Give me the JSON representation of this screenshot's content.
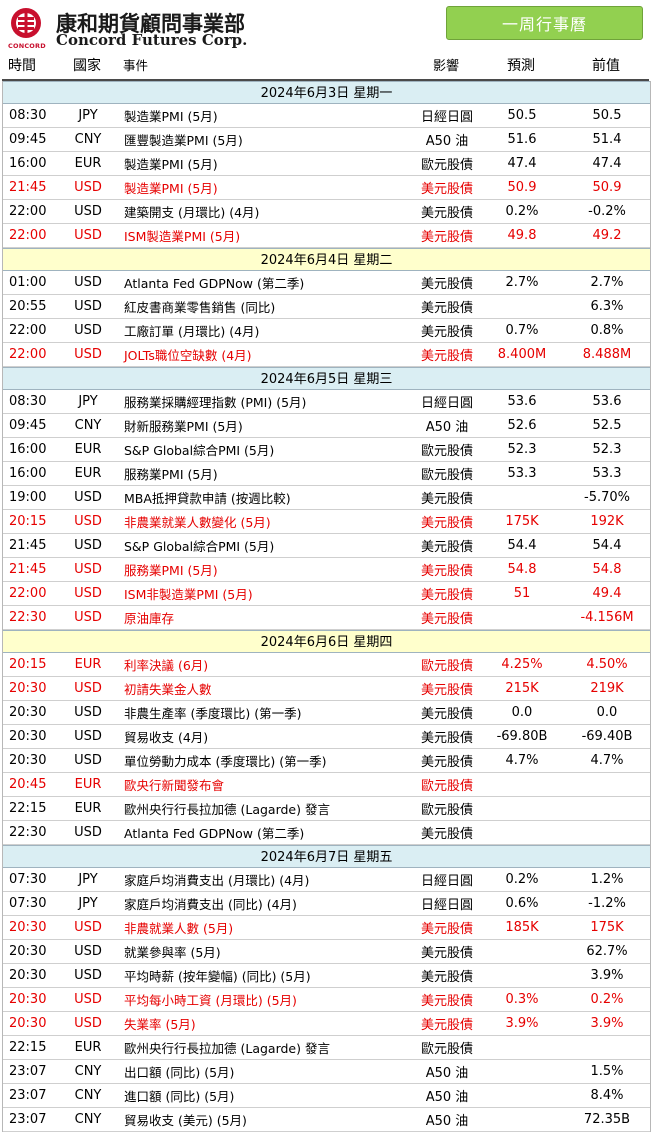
{
  "header": {
    "logo_cn": "康和期貨顧問事業部",
    "logo_en": "Concord Futures Corp.",
    "logo_small": "CONCORD",
    "week_button": "一周行事曆"
  },
  "columns": [
    "時間",
    "國家",
    "事件",
    "影響",
    "預測",
    "前值"
  ],
  "colors": {
    "highlight": "#e60000",
    "day_blue": "#daeef3",
    "day_yellow": "#ffffcc",
    "button": "#92d050"
  },
  "days": [
    {
      "label": "2024年6月3日  星期一",
      "style": "blue",
      "rows": [
        {
          "time": "08:30",
          "country": "JPY",
          "event": "製造業PMI (5月)",
          "impact": "日經日圓",
          "forecast": "50.5",
          "previous": "50.5",
          "hi": false
        },
        {
          "time": "09:45",
          "country": "CNY",
          "event": "匯豐製造業PMI (5月)",
          "impact": "A50 油",
          "forecast": "51.6",
          "previous": "51.4",
          "hi": false
        },
        {
          "time": "16:00",
          "country": "EUR",
          "event": "製造業PMI (5月)",
          "impact": "歐元股債",
          "forecast": "47.4",
          "previous": "47.4",
          "hi": false
        },
        {
          "time": "21:45",
          "country": "USD",
          "event": "製造業PMI (5月)",
          "impact": "美元股債",
          "forecast": "50.9",
          "previous": "50.9",
          "hi": true
        },
        {
          "time": "22:00",
          "country": "USD",
          "event": "建築開支 (月環比) (4月)",
          "impact": "美元股債",
          "forecast": "0.2%",
          "previous": "-0.2%",
          "hi": false
        },
        {
          "time": "22:00",
          "country": "USD",
          "event": "ISM製造業PMI (5月)",
          "impact": "美元股債",
          "forecast": "49.8",
          "previous": "49.2",
          "hi": true
        }
      ]
    },
    {
      "label": "2024年6月4日  星期二",
      "style": "yellow",
      "rows": [
        {
          "time": "01:00",
          "country": "USD",
          "event": "Atlanta Fed GDPNow (第二季)",
          "impact": "美元股債",
          "forecast": "2.7%",
          "previous": "2.7%",
          "hi": false
        },
        {
          "time": "20:55",
          "country": "USD",
          "event": "紅皮書商業零售銷售 (同比)",
          "impact": "美元股債",
          "forecast": "",
          "previous": "6.3%",
          "hi": false
        },
        {
          "time": "22:00",
          "country": "USD",
          "event": "工廠訂單 (月環比) (4月)",
          "impact": "美元股債",
          "forecast": "0.7%",
          "previous": "0.8%",
          "hi": false
        },
        {
          "time": "22:00",
          "country": "USD",
          "event": "JOLTs職位空缺數 (4月)",
          "impact": "美元股債",
          "forecast": "8.400M",
          "previous": "8.488M",
          "hi": true
        }
      ]
    },
    {
      "label": "2024年6月5日  星期三",
      "style": "blue",
      "rows": [
        {
          "time": "08:30",
          "country": "JPY",
          "event": "服務業採購經理指數 (PMI) (5月)",
          "impact": "日經日圓",
          "forecast": "53.6",
          "previous": "53.6",
          "hi": false
        },
        {
          "time": "09:45",
          "country": "CNY",
          "event": "財新服務業PMI (5月)",
          "impact": "A50 油",
          "forecast": "52.6",
          "previous": "52.5",
          "hi": false
        },
        {
          "time": "16:00",
          "country": "EUR",
          "event": "S&P Global綜合PMI (5月)",
          "impact": "歐元股債",
          "forecast": "52.3",
          "previous": "52.3",
          "hi": false
        },
        {
          "time": "16:00",
          "country": "EUR",
          "event": "服務業PMI (5月)",
          "impact": "歐元股債",
          "forecast": "53.3",
          "previous": "53.3",
          "hi": false
        },
        {
          "time": "19:00",
          "country": "USD",
          "event": "MBA抵押貸款申請 (按週比較)",
          "impact": "美元股債",
          "forecast": "",
          "previous": "-5.70%",
          "hi": false
        },
        {
          "time": "20:15",
          "country": "USD",
          "event": "非農業就業人數變化 (5月)",
          "impact": "美元股債",
          "forecast": "175K",
          "previous": "192K",
          "hi": true
        },
        {
          "time": "21:45",
          "country": "USD",
          "event": "S&P Global綜合PMI (5月)",
          "impact": "美元股債",
          "forecast": "54.4",
          "previous": "54.4",
          "hi": false
        },
        {
          "time": "21:45",
          "country": "USD",
          "event": "服務業PMI (5月)",
          "impact": "美元股債",
          "forecast": "54.8",
          "previous": "54.8",
          "hi": true
        },
        {
          "time": "22:00",
          "country": "USD",
          "event": "ISM非製造業PMI (5月)",
          "impact": "美元股債",
          "forecast": "51",
          "previous": "49.4",
          "hi": true
        },
        {
          "time": "22:30",
          "country": "USD",
          "event": "原油庫存",
          "impact": "美元股債",
          "forecast": "",
          "previous": "-4.156M",
          "hi": true
        }
      ]
    },
    {
      "label": "2024年6月6日  星期四",
      "style": "yellow",
      "rows": [
        {
          "time": "20:15",
          "country": "EUR",
          "event": "利率決議 (6月)",
          "impact": "歐元股債",
          "forecast": "4.25%",
          "previous": "4.50%",
          "hi": true
        },
        {
          "time": "20:30",
          "country": "USD",
          "event": "初請失業金人數",
          "impact": "美元股債",
          "forecast": "215K",
          "previous": "219K",
          "hi": true
        },
        {
          "time": "20:30",
          "country": "USD",
          "event": "非農生產率 (季度環比) (第一季)",
          "impact": "美元股債",
          "forecast": "0.0",
          "previous": "0.0",
          "hi": false
        },
        {
          "time": "20:30",
          "country": "USD",
          "event": "貿易收支 (4月)",
          "impact": "美元股債",
          "forecast": "-69.80B",
          "previous": "-69.40B",
          "hi": false
        },
        {
          "time": "20:30",
          "country": "USD",
          "event": "單位勞動力成本 (季度環比) (第一季)",
          "impact": "美元股債",
          "forecast": "4.7%",
          "previous": "4.7%",
          "hi": false
        },
        {
          "time": "20:45",
          "country": "EUR",
          "event": "歐央行新聞發布會",
          "impact": "歐元股債",
          "forecast": "",
          "previous": "",
          "hi": true
        },
        {
          "time": "22:15",
          "country": "EUR",
          "event": "歐州央行行長拉加德 (Lagarde) 發言",
          "impact": "歐元股債",
          "forecast": "",
          "previous": "",
          "hi": false
        },
        {
          "time": "22:30",
          "country": "USD",
          "event": "Atlanta Fed GDPNow (第二季)",
          "impact": "美元股債",
          "forecast": "",
          "previous": "",
          "hi": false
        }
      ]
    },
    {
      "label": "2024年6月7日  星期五",
      "style": "blue",
      "rows": [
        {
          "time": "07:30",
          "country": "JPY",
          "event": "家庭戶均消費支出 (月環比) (4月)",
          "impact": "日經日圓",
          "forecast": "0.2%",
          "previous": "1.2%",
          "hi": false
        },
        {
          "time": "07:30",
          "country": "JPY",
          "event": "家庭戶均消費支出 (同比) (4月)",
          "impact": "日經日圓",
          "forecast": "0.6%",
          "previous": "-1.2%",
          "hi": false
        },
        {
          "time": "20:30",
          "country": "USD",
          "event": "非農就業人數 (5月)",
          "impact": "美元股債",
          "forecast": "185K",
          "previous": "175K",
          "hi": true
        },
        {
          "time": "20:30",
          "country": "USD",
          "event": "就業參與率 (5月)",
          "impact": "美元股債",
          "forecast": "",
          "previous": "62.7%",
          "hi": false
        },
        {
          "time": "20:30",
          "country": "USD",
          "event": "平均時薪 (按年變幅) (同比) (5月)",
          "impact": "美元股債",
          "forecast": "",
          "previous": "3.9%",
          "hi": false
        },
        {
          "time": "20:30",
          "country": "USD",
          "event": "平均每小時工資 (月環比) (5月)",
          "impact": "美元股債",
          "forecast": "0.3%",
          "previous": "0.2%",
          "hi": true
        },
        {
          "time": "20:30",
          "country": "USD",
          "event": "失業率 (5月)",
          "impact": "美元股債",
          "forecast": "3.9%",
          "previous": "3.9%",
          "hi": true
        },
        {
          "time": "22:15",
          "country": "EUR",
          "event": "歐州央行行長拉加德 (Lagarde) 發言",
          "impact": "歐元股債",
          "forecast": "",
          "previous": "",
          "hi": false
        },
        {
          "time": "23:07",
          "country": "CNY",
          "event": "出口額 (同比) (5月)",
          "impact": "A50 油",
          "forecast": "",
          "previous": "1.5%",
          "hi": false
        },
        {
          "time": "23:07",
          "country": "CNY",
          "event": "進口額 (同比) (5月)",
          "impact": "A50 油",
          "forecast": "",
          "previous": "8.4%",
          "hi": false
        },
        {
          "time": "23:07",
          "country": "CNY",
          "event": "貿易收支 (美元) (5月)",
          "impact": "A50 油",
          "forecast": "",
          "previous": "72.35B",
          "hi": false
        }
      ]
    }
  ]
}
